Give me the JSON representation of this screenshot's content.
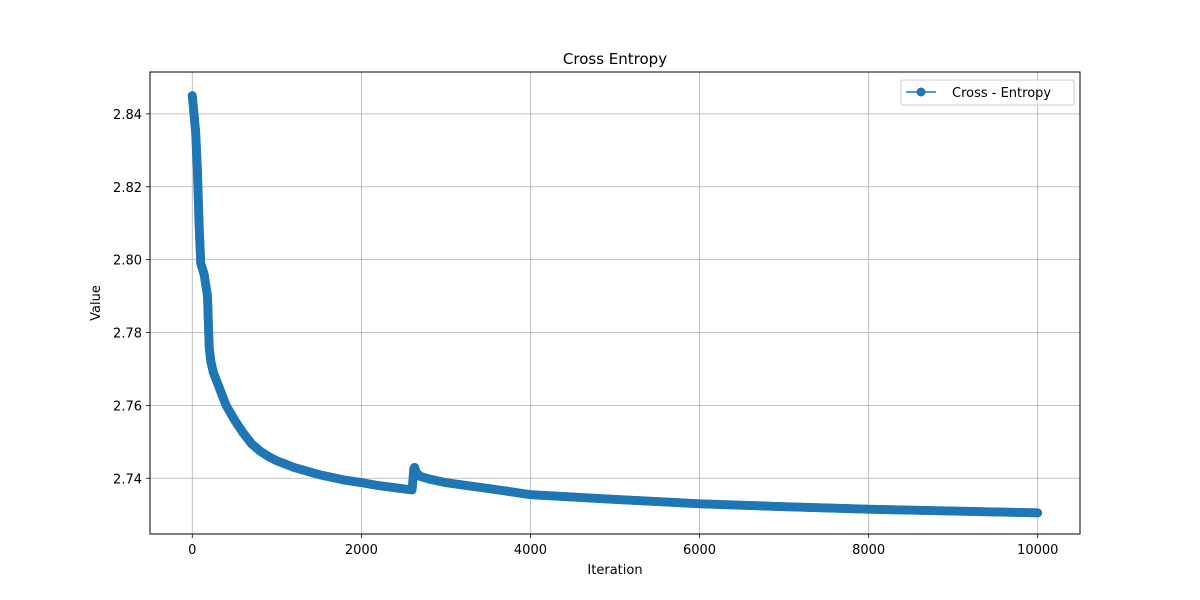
{
  "chart_data": {
    "type": "line",
    "title": "Cross Entropy",
    "xlabel": "Iteration",
    "ylabel": "Value",
    "xlim": [
      -500,
      10500
    ],
    "ylim": [
      2.7247,
      2.8515
    ],
    "xticks": [
      0,
      2000,
      4000,
      6000,
      8000,
      10000
    ],
    "yticks": [
      2.74,
      2.76,
      2.78,
      2.8,
      2.82,
      2.84
    ],
    "ytick_labels": [
      "2.74",
      "2.76",
      "2.78",
      "2.80",
      "2.82",
      "2.84"
    ],
    "grid": true,
    "legend_position": "top-right",
    "color": "#1f77b4",
    "series": [
      {
        "name": "Cross - Entropy",
        "marker": "circle",
        "x": [
          0,
          20,
          40,
          60,
          80,
          100,
          140,
          180,
          200,
          220,
          250,
          300,
          400,
          500,
          600,
          700,
          800,
          900,
          1000,
          1200,
          1500,
          1800,
          2000,
          2200,
          2400,
          2600,
          2620,
          2630,
          2650,
          2700,
          2800,
          3000,
          3500,
          4000,
          5000,
          6000,
          7000,
          8000,
          9000,
          10000
        ],
        "y": [
          2.845,
          2.84,
          2.835,
          2.825,
          2.81,
          2.799,
          2.796,
          2.79,
          2.776,
          2.772,
          2.769,
          2.766,
          2.76,
          2.756,
          2.7525,
          2.7495,
          2.7475,
          2.746,
          2.7448,
          2.743,
          2.741,
          2.7395,
          2.7388,
          2.738,
          2.7374,
          2.7368,
          2.7425,
          2.743,
          2.7415,
          2.7405,
          2.7398,
          2.7388,
          2.7372,
          2.7355,
          2.7342,
          2.733,
          2.7322,
          2.7315,
          2.731,
          2.7305
        ]
      }
    ]
  }
}
